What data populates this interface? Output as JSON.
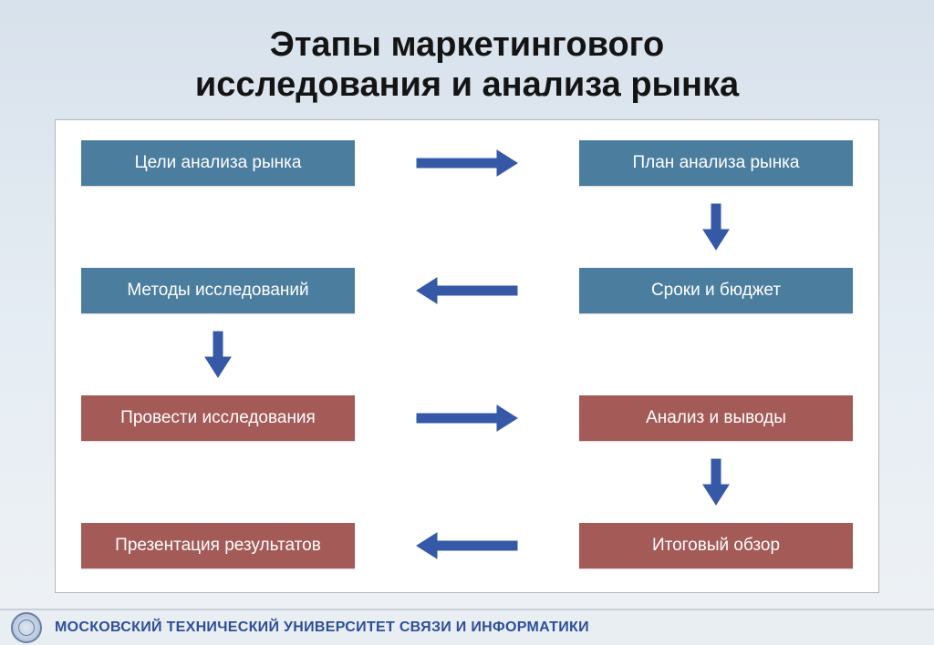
{
  "title_line1": "Этапы маркетингового",
  "title_line2": "исследования и анализа  рынка",
  "title_fontsize": 38,
  "colors": {
    "blue_node": "#4b7d9f",
    "brown_node": "#a45a57",
    "arrow": "#3558a7",
    "title_text": "#141414",
    "footer_text": "#2e4e99",
    "diagram_bg": "#ffffff",
    "diagram_border": "#b7b7b7"
  },
  "node_fontsize": 19,
  "nodes": {
    "n1": "Цели анализа рынка",
    "n2": "План анализа рынка",
    "n3": "Методы исследований",
    "n4": "Сроки и бюджет",
    "n5": "Провести исследования",
    "n6": "Анализ и выводы",
    "n7": "Презентация результатов",
    "n8": "Итоговый обзор"
  },
  "node_styles": {
    "n1": "blue",
    "n2": "blue",
    "n3": "blue",
    "n4": "blue",
    "n5": "brown",
    "n6": "brown",
    "n7": "brown",
    "n8": "brown"
  },
  "arrows": [
    {
      "id": "a1",
      "from": "n1",
      "to": "n2",
      "dir": "right"
    },
    {
      "id": "a2",
      "from": "n2",
      "to": "n4",
      "dir": "down"
    },
    {
      "id": "a3",
      "from": "n4",
      "to": "n3",
      "dir": "left"
    },
    {
      "id": "a4",
      "from": "n3",
      "to": "n5",
      "dir": "down"
    },
    {
      "id": "a5",
      "from": "n5",
      "to": "n6",
      "dir": "right"
    },
    {
      "id": "a6",
      "from": "n6",
      "to": "n8",
      "dir": "down"
    },
    {
      "id": "a7",
      "from": "n8",
      "to": "n7",
      "dir": "left"
    }
  ],
  "arrow_style": {
    "shaft_thickness": 10,
    "head_width": 28,
    "head_length": 22,
    "length_h": 110,
    "length_v": 50
  },
  "footer": "МОСКОВСКИЙ ТЕХНИЧЕСКИЙ УНИВЕРСИТЕТ СВЯЗИ И ИНФОРМАТИКИ",
  "footer_fontsize": 16
}
